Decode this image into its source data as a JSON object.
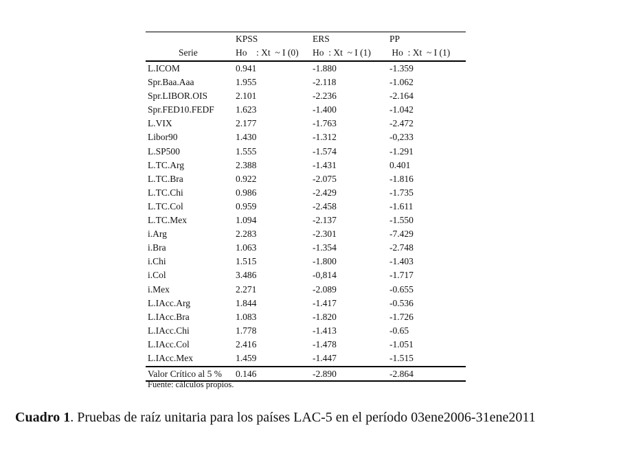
{
  "table": {
    "headers": {
      "serie": "Serie",
      "tests": [
        "KPSS",
        "ERS",
        "PP"
      ],
      "hypotheses": [
        "Ho    : Xt  ~ I (0)",
        "Ho  : Xt  ~ I (1)",
        " Ho  : Xt  ~ I (1)"
      ]
    },
    "rows": [
      [
        "L.ICOM",
        "0.941",
        "-1.880",
        "-1.359"
      ],
      [
        "Spr.Baa.Aaa",
        "1.955",
        "-2.118",
        "-1.062"
      ],
      [
        "Spr.LIBOR.OIS",
        "2.101",
        "-2.236",
        "-2.164"
      ],
      [
        "Spr.FED10.FEDF",
        "1.623",
        "-1.400",
        "-1.042"
      ],
      [
        "L.VIX",
        "2.177",
        "-1.763",
        "-2.472"
      ],
      [
        "Libor90",
        "1.430",
        "-1.312",
        "-0,233"
      ],
      [
        "L.SP500",
        "1.555",
        "-1.574",
        "-1.291"
      ],
      [
        "L.TC.Arg",
        "2.388",
        "-1.431",
        "0.401"
      ],
      [
        "L.TC.Bra",
        "0.922",
        "-2.075",
        "-1.816"
      ],
      [
        "L.TC.Chi",
        "0.986",
        "-2.429",
        "-1.735"
      ],
      [
        "L.TC.Col",
        "0.959",
        "-2.458",
        "-1.611"
      ],
      [
        "L.TC.Mex",
        "1.094",
        "-2.137",
        "-1.550"
      ],
      [
        "i.Arg",
        "2.283",
        "-2.301",
        "-7.429"
      ],
      [
        "i.Bra",
        "1.063",
        "-1.354",
        "-2.748"
      ],
      [
        "i.Chi",
        "1.515",
        "-1.800",
        "-1.403"
      ],
      [
        "i.Col",
        "3.486",
        "-0,814",
        "-1.717"
      ],
      [
        "i.Mex",
        "2.271",
        "-2.089",
        "-0.655"
      ],
      [
        "L.IAcc.Arg",
        "1.844",
        "-1.417",
        "-0.536"
      ],
      [
        "L.IAcc.Bra",
        "1.083",
        "-1.820",
        "-1.726"
      ],
      [
        "L.IAcc.Chi",
        "1.778",
        "-1.413",
        "-0.65"
      ],
      [
        "L.IAcc.Col",
        "2.416",
        "-1.478",
        "-1.051"
      ],
      [
        "L.IAcc.Mex",
        "1.459",
        "-1.447",
        "-1.515"
      ]
    ],
    "critical": [
      "Valor Crítico al 5 %",
      "0.146",
      "-2.890",
      "-2.864"
    ]
  },
  "source": "Fuente: cálculos propios.",
  "caption": {
    "label": "Cuadro 1",
    "text": ". Pruebas de raíz unitaria para los países LAC-5 en el período 03ene2006-31ene2011"
  }
}
